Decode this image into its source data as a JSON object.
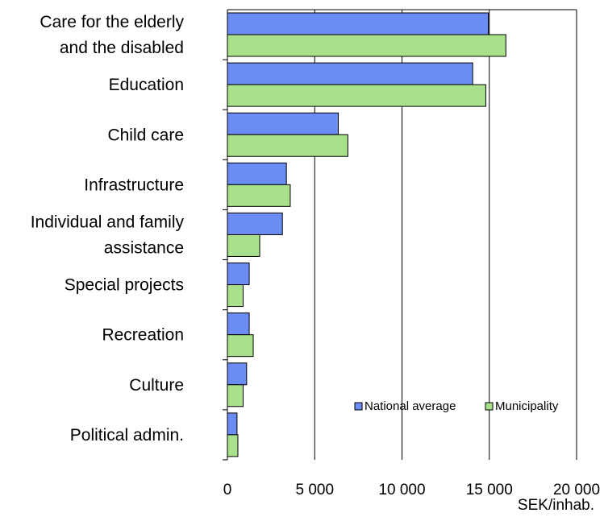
{
  "chart_data": {
    "type": "bar",
    "orientation": "horizontal",
    "categories": [
      "Care for the elderly and the disabled",
      "Education",
      "Child care",
      "Infrastructure",
      "Individual and family assistance",
      "Special projects",
      "Recreation",
      "Culture",
      "Political admin."
    ],
    "category_lines": [
      [
        "Care for the elderly",
        "and the disabled"
      ],
      [
        "Education"
      ],
      [
        "Child care"
      ],
      [
        "Infrastructure"
      ],
      [
        "Individual and family",
        "assistance"
      ],
      [
        "Special projects"
      ],
      [
        "Recreation"
      ],
      [
        "Culture"
      ],
      [
        "Political admin."
      ]
    ],
    "series": [
      {
        "name": "National average",
        "color": "#6b8cf2",
        "values": [
          14950,
          14050,
          6350,
          3380,
          3150,
          1250,
          1250,
          1100,
          550
        ]
      },
      {
        "name": "Municipality",
        "color": "#a8e08c",
        "values": [
          15950,
          14800,
          6900,
          3600,
          1850,
          900,
          1480,
          900,
          600
        ]
      }
    ],
    "x_ticks": [
      "0",
      "5 000",
      "10 000",
      "15 000",
      "20 000"
    ],
    "xlim": [
      0,
      20000
    ],
    "xlabel": "SEK/inhab.",
    "ylabel": "",
    "title": "",
    "grid": true,
    "legend_position": "bottom-right inside plot"
  }
}
